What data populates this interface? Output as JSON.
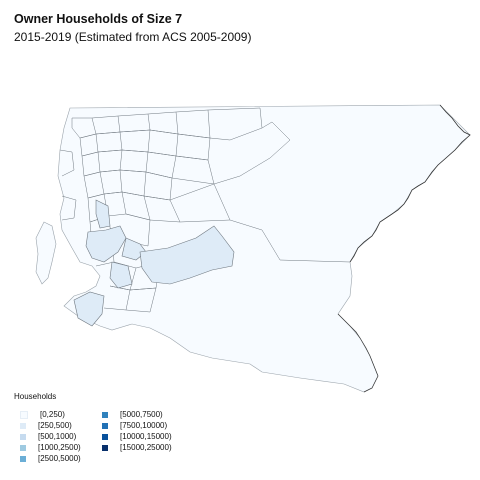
{
  "title": "Owner Households of Size 7",
  "subtitle": "2015-2019 (Estimated from ACS 2005-2009)",
  "legend": {
    "title": "Households",
    "items": [
      {
        "label": "[0,250)",
        "color": "#f7fbff"
      },
      {
        "label": "[250,500)",
        "color": "#deebf7"
      },
      {
        "label": "[500,1000)",
        "color": "#c6dbef"
      },
      {
        "label": "[1000,2500)",
        "color": "#9ecae1"
      },
      {
        "label": "[2500,5000)",
        "color": "#6baed6"
      },
      {
        "label": "[5000,7500)",
        "color": "#3182bd"
      },
      {
        "label": "[7500,10000)",
        "color": "#2171b5"
      },
      {
        "label": "[10000,15000)",
        "color": "#08519c"
      },
      {
        "label": "[15000,25000)",
        "color": "#08306b"
      }
    ]
  }
}
